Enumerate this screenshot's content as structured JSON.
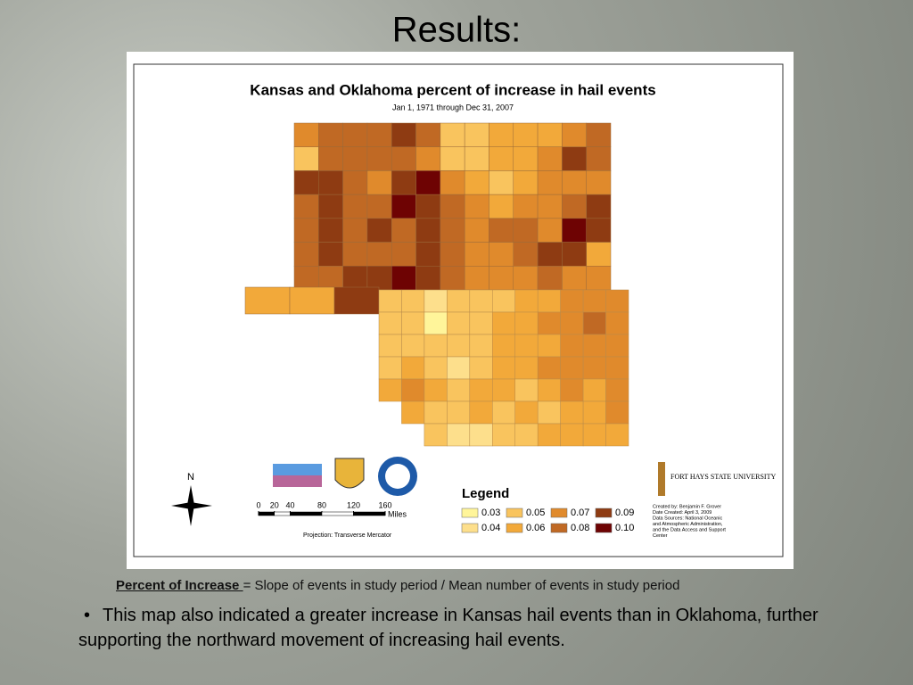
{
  "slide": {
    "title": "Results:",
    "definition_term": "Percent of Increase ",
    "definition_text": "= Slope of events in study period / Mean number of events in study period",
    "bullet": "This map also indicated a greater increase in Kansas hail events than in Oklahoma, further supporting the northward movement of increasing hail events."
  },
  "map": {
    "title": "Kansas and Oklahoma percent of increase in hail events",
    "subtitle": "Jan 1, 1971 through Dec 31, 2007",
    "north": "N",
    "projection": "Projection: Transverse Mercator",
    "university": "FORT HAYS STATE UNIVERSITY",
    "credits": [
      "Created by:  Benjamin F. Grover",
      "Date Created: April 3, 2009",
      "Data Sources: National Oceanic",
      "and Atmospheric Administration,",
      "and the Data Access and Support",
      "Center"
    ],
    "scale": {
      "ticks": [
        0,
        20,
        40,
        80,
        120,
        160
      ],
      "unit": "Miles"
    },
    "legend": {
      "title": "Legend",
      "items": [
        {
          "value": 0.03,
          "color": "#fff59a"
        },
        {
          "value": 0.04,
          "color": "#fddf8c"
        },
        {
          "value": 0.05,
          "color": "#f9c45e"
        },
        {
          "value": 0.06,
          "color": "#f2a93a"
        },
        {
          "value": 0.07,
          "color": "#e08a2c"
        },
        {
          "value": 0.08,
          "color": "#c06924"
        },
        {
          "value": 0.09,
          "color": "#8e3b12"
        },
        {
          "value": {
            "value": 0.1,
            "label": "0.10"
          },
          "color": "#6e0303"
        }
      ]
    },
    "kansas": {
      "rows": [
        [
          0.07,
          0.08,
          0.08,
          0.08,
          0.09,
          0.08,
          0.05,
          0.05,
          0.06,
          0.06,
          0.06,
          0.07,
          0.08
        ],
        [
          0.05,
          0.08,
          0.08,
          0.08,
          0.08,
          0.07,
          0.05,
          0.05,
          0.06,
          0.06,
          0.07,
          0.09,
          0.08
        ],
        [
          0.09,
          0.09,
          0.08,
          0.07,
          0.09,
          0.1,
          0.07,
          0.06,
          0.05,
          0.06,
          0.07,
          0.07,
          0.07
        ],
        [
          0.08,
          0.09,
          0.08,
          0.08,
          0.1,
          0.09,
          0.08,
          0.07,
          0.06,
          0.07,
          0.07,
          0.08,
          0.09
        ],
        [
          0.08,
          0.09,
          0.08,
          0.09,
          0.08,
          0.09,
          0.08,
          0.07,
          0.08,
          0.08,
          0.07,
          0.1,
          0.09
        ],
        [
          0.08,
          0.09,
          0.08,
          0.08,
          0.08,
          0.09,
          0.08,
          0.07,
          0.07,
          0.08,
          0.09,
          0.09,
          0.06
        ],
        [
          0.08,
          0.08,
          0.09,
          0.09,
          0.1,
          0.09,
          0.08,
          0.07,
          0.07,
          0.07,
          0.08,
          0.07,
          0.07
        ]
      ]
    },
    "oklahoma": {
      "panhandle": [
        0.06,
        0.06,
        0.09
      ],
      "rows": [
        [
          0.05,
          0.05,
          0.04,
          0.05,
          0.05,
          0.05,
          0.06,
          0.06,
          0.07,
          0.07,
          0.07
        ],
        [
          0.05,
          0.05,
          0.03,
          0.05,
          0.05,
          0.06,
          0.06,
          0.07,
          0.07,
          0.08,
          0.07
        ],
        [
          0.05,
          0.05,
          0.05,
          0.05,
          0.05,
          0.06,
          0.06,
          0.06,
          0.07,
          0.07,
          0.07
        ],
        [
          0.05,
          0.06,
          0.05,
          0.04,
          0.05,
          0.06,
          0.06,
          0.07,
          0.07,
          0.07,
          0.07
        ],
        [
          0.06,
          0.07,
          0.06,
          0.05,
          0.06,
          0.06,
          0.05,
          0.06,
          0.07,
          0.06,
          0.07
        ],
        [
          null,
          0.06,
          0.05,
          0.05,
          0.06,
          0.05,
          0.06,
          0.05,
          0.06,
          0.06,
          0.07
        ],
        [
          null,
          null,
          0.05,
          0.04,
          0.04,
          0.05,
          0.05,
          0.06,
          0.06,
          0.06,
          0.06
        ]
      ]
    }
  }
}
